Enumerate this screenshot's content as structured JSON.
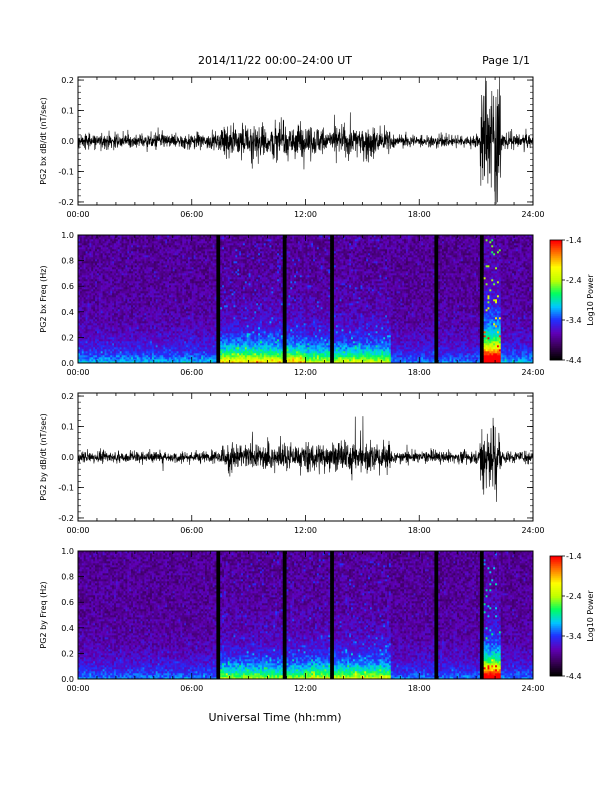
{
  "header": {
    "title": "2014/11/22  00:00–24:00 UT",
    "page": "Page 1/1"
  },
  "x_axis": {
    "tick_labels": [
      "00:00",
      "06:00",
      "12:00",
      "18:00",
      "24:00"
    ],
    "xlabel": "Universal Time (hh:mm)"
  },
  "colorbar": {
    "label": "Log10 Power",
    "tick_labels": [
      "-1.4",
      "-2.4",
      "-3.4",
      "-4.4"
    ],
    "colors": [
      "#000000",
      "#3a0058",
      "#6000b8",
      "#2030ff",
      "#00c8ff",
      "#00ff60",
      "#c0ff00",
      "#ffff00",
      "#ff8000",
      "#ff0000"
    ]
  },
  "chart_data": [
    {
      "type": "line",
      "ylabel": "PG2 bx dB/dt (nT/sec)",
      "y_tick_labels": [
        "0.2",
        "0.1",
        "0.0",
        "-0.1",
        "-0.2"
      ],
      "ylim": [
        -0.21,
        0.21
      ],
      "xlim": [
        0,
        24
      ],
      "activity": [
        {
          "start": 0.0,
          "end": 7.5,
          "amplitude": 0.025
        },
        {
          "start": 7.5,
          "end": 12.0,
          "amplitude": 0.06
        },
        {
          "start": 12.0,
          "end": 16.5,
          "amplitude": 0.05
        },
        {
          "start": 16.5,
          "end": 21.2,
          "amplitude": 0.02
        },
        {
          "start": 21.2,
          "end": 22.3,
          "amplitude": 0.2
        },
        {
          "start": 22.3,
          "end": 24.0,
          "amplitude": 0.025
        }
      ]
    },
    {
      "type": "heatmap",
      "ylabel": "PG2 bx Freq (Hz)",
      "y_tick_labels": [
        "1.0",
        "0.8",
        "0.6",
        "0.4",
        "0.2",
        "0.0"
      ],
      "ylim": [
        0,
        1
      ],
      "xlim": [
        0,
        24
      ],
      "zlim": [
        -4.4,
        -1.4
      ],
      "gaps_hours": [
        7.4,
        10.9,
        13.4,
        18.9,
        21.3
      ]
    },
    {
      "type": "line",
      "ylabel": "PG2 by dB/dt (nT/sec)",
      "y_tick_labels": [
        "0.2",
        "0.1",
        "0.0",
        "-0.1",
        "-0.2"
      ],
      "ylim": [
        -0.21,
        0.21
      ],
      "xlim": [
        0,
        24
      ],
      "activity": [
        {
          "start": 0.0,
          "end": 7.5,
          "amplitude": 0.02
        },
        {
          "start": 7.5,
          "end": 12.0,
          "amplitude": 0.045
        },
        {
          "start": 12.0,
          "end": 16.5,
          "amplitude": 0.05
        },
        {
          "start": 16.5,
          "end": 21.2,
          "amplitude": 0.02
        },
        {
          "start": 21.2,
          "end": 22.3,
          "amplitude": 0.12
        },
        {
          "start": 22.3,
          "end": 24.0,
          "amplitude": 0.02
        }
      ]
    },
    {
      "type": "heatmap",
      "ylabel": "PG2 by Freq (Hz)",
      "y_tick_labels": [
        "1.0",
        "0.8",
        "0.6",
        "0.4",
        "0.2",
        "0.0"
      ],
      "ylim": [
        0,
        1
      ],
      "xlim": [
        0,
        24
      ],
      "zlim": [
        -4.4,
        -1.4
      ],
      "gaps_hours": [
        7.4,
        10.9,
        13.4,
        18.9,
        21.3
      ]
    }
  ]
}
